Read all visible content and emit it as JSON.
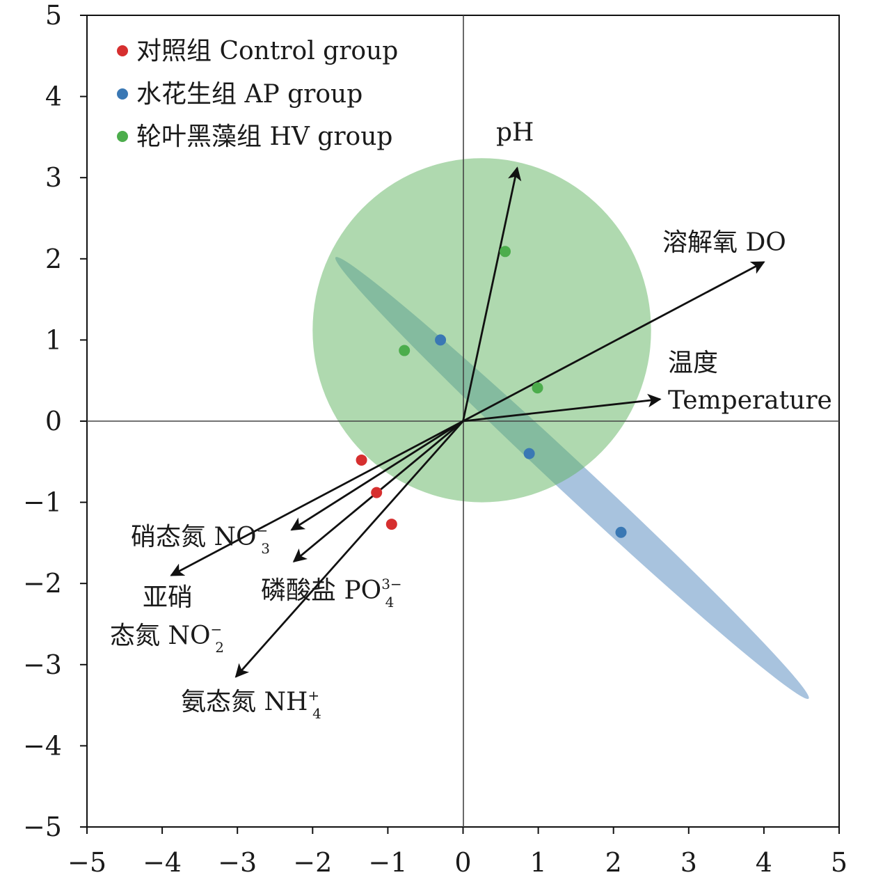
{
  "chart_data": {
    "type": "scatter",
    "xlim": [
      -5,
      5
    ],
    "ylim": [
      -5,
      5
    ],
    "x_ticks": [
      -5,
      -4,
      -3,
      -2,
      -1,
      0,
      1,
      2,
      3,
      4,
      5
    ],
    "y_ticks": [
      -5,
      -4,
      -3,
      -2,
      -1,
      0,
      1,
      2,
      3,
      4,
      5
    ],
    "x_tick_labels": [
      "−5",
      "−4",
      "−3",
      "−2",
      "−1",
      "0",
      "1",
      "2",
      "3",
      "4",
      "5"
    ],
    "y_tick_labels": [
      "−5",
      "−4",
      "−3",
      "−2",
      "−1",
      "0",
      "1",
      "2",
      "3",
      "4",
      "5"
    ],
    "grid": false,
    "zero_lines": true,
    "legend_position": "top-left",
    "series": [
      {
        "name": "对照组 Control group",
        "color": "#d62f2f",
        "points": [
          [
            -1.35,
            -0.48
          ],
          [
            -1.15,
            -0.88
          ],
          [
            -0.95,
            -1.27
          ]
        ]
      },
      {
        "name": "水花生组 AP group",
        "color": "#3a78b4",
        "points": [
          [
            -0.3,
            1.0
          ],
          [
            0.88,
            -0.4
          ],
          [
            2.1,
            -1.37
          ]
        ],
        "ellipse": {
          "color": "#6e9bc8",
          "opacity": 0.6,
          "cx": 1.45,
          "cy": -0.7,
          "rx": 4.3,
          "ry": 0.2,
          "angle_deg": 43
        }
      },
      {
        "name": "轮叶黑藻组 HV group",
        "color": "#4cad4c",
        "points": [
          [
            -0.78,
            0.87
          ],
          [
            0.56,
            2.09
          ],
          [
            0.99,
            0.41
          ]
        ],
        "ellipse": {
          "color": "#5fb35f",
          "opacity": 0.5,
          "cx": 0.25,
          "cy": 1.12,
          "rx": 2.25,
          "ry": 2.12,
          "angle_deg": 0
        }
      }
    ],
    "vectors": [
      {
        "label": "pH",
        "x": 0.72,
        "y": 3.12
      },
      {
        "label": "溶解氧 DO",
        "x": 4.0,
        "y": 1.96
      },
      {
        "label_line1": "温度",
        "label_line2": "Temperature",
        "x": 2.62,
        "y": 0.27
      },
      {
        "label": "硝态氮 NO",
        "sub": "3",
        "sup": "−",
        "x": -2.28,
        "y": -1.34
      },
      {
        "label_line1": "亚硝",
        "label_line2": "态氮 NO",
        "sub": "2",
        "sup": "−",
        "x": -3.88,
        "y": -1.9
      },
      {
        "label": "磷酸盐 PO",
        "sub": "4",
        "sup": "3−",
        "x": -2.25,
        "y": -1.73
      },
      {
        "label": "氨态氮 NH",
        "sub": "4",
        "sup": "+",
        "x": -3.02,
        "y": -3.15
      }
    ]
  }
}
